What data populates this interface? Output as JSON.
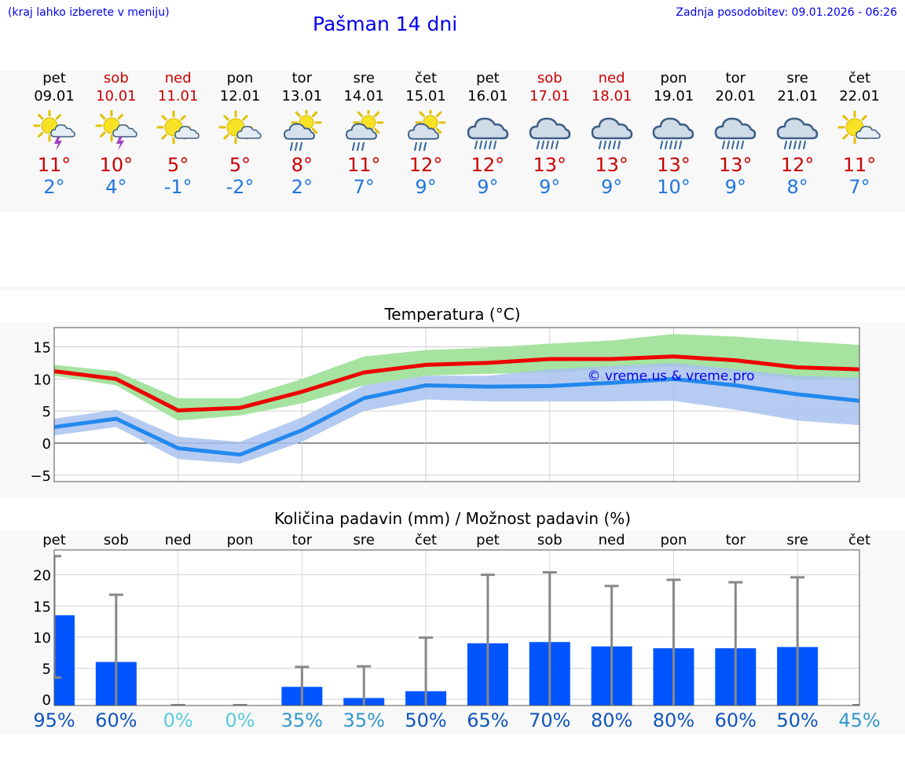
{
  "header": {
    "menu_hint": "(kraj lahko izberete v meniju)",
    "title": "Pašman 14 dni",
    "updated": "Zadnja posodobitev: 09.01.2026 - 06:26"
  },
  "colors": {
    "weekday": "#000000",
    "weekend": "#cc0000",
    "max_temp": "#cc0000",
    "min_temp": "#2277dd",
    "max_line": "#ee0000",
    "max_band": "#a6e3a0",
    "min_line": "#2288ee",
    "min_band": "#a9c2ee",
    "bar": "#0055ff",
    "whisker": "#888888"
  },
  "days": [
    {
      "name": "pet",
      "date": "09.01",
      "weekend": false,
      "icon": "sun-cloud-thunder-icon",
      "max": "11°",
      "min": "2°"
    },
    {
      "name": "sob",
      "date": "10.01",
      "weekend": true,
      "icon": "sun-cloud-thunder-icon",
      "max": "10°",
      "min": "4°"
    },
    {
      "name": "ned",
      "date": "11.01",
      "weekend": true,
      "icon": "sun-cloud-icon",
      "max": "5°",
      "min": "-1°"
    },
    {
      "name": "pon",
      "date": "12.01",
      "weekend": false,
      "icon": "sun-cloud-icon",
      "max": "5°",
      "min": "-2°"
    },
    {
      "name": "tor",
      "date": "13.01",
      "weekend": false,
      "icon": "sun-cloud-rain-icon",
      "max": "8°",
      "min": "2°"
    },
    {
      "name": "sre",
      "date": "14.01",
      "weekend": false,
      "icon": "sun-cloud-rain-icon",
      "max": "11°",
      "min": "7°"
    },
    {
      "name": "čet",
      "date": "15.01",
      "weekend": false,
      "icon": "sun-cloud-rain-icon",
      "max": "12°",
      "min": "9°"
    },
    {
      "name": "pet",
      "date": "16.01",
      "weekend": false,
      "icon": "cloud-rain-icon",
      "max": "12°",
      "min": "9°"
    },
    {
      "name": "sob",
      "date": "17.01",
      "weekend": true,
      "icon": "cloud-rain-icon",
      "max": "13°",
      "min": "9°"
    },
    {
      "name": "ned",
      "date": "18.01",
      "weekend": true,
      "icon": "cloud-rain-icon",
      "max": "13°",
      "min": "9°"
    },
    {
      "name": "pon",
      "date": "19.01",
      "weekend": false,
      "icon": "cloud-rain-icon",
      "max": "13°",
      "min": "10°"
    },
    {
      "name": "tor",
      "date": "20.01",
      "weekend": false,
      "icon": "cloud-rain-icon",
      "max": "13°",
      "min": "9°"
    },
    {
      "name": "sre",
      "date": "21.01",
      "weekend": false,
      "icon": "cloud-rain-icon",
      "max": "12°",
      "min": "8°"
    },
    {
      "name": "čet",
      "date": "22.01",
      "weekend": false,
      "icon": "sun-cloud-icon",
      "max": "11°",
      "min": "7°"
    }
  ],
  "chart_data": [
    {
      "type": "line",
      "title": "Temperatura (°C)",
      "watermark": "© vreme.us & vreme.pro",
      "x": [
        "09.01",
        "10.01",
        "11.01",
        "12.01",
        "13.01",
        "14.01",
        "15.01",
        "16.01",
        "17.01",
        "18.01",
        "19.01",
        "20.01",
        "21.01",
        "22.01"
      ],
      "ylim": [
        -6,
        18
      ],
      "yticks": [
        -5,
        0,
        5,
        10,
        15
      ],
      "yticklabels": [
        "−5",
        "0",
        "5",
        "10",
        "15"
      ],
      "grid": true,
      "series": [
        {
          "name": "max",
          "values": [
            11.2,
            10,
            5.1,
            5.5,
            8,
            11,
            12.2,
            12.5,
            13.1,
            13.1,
            13.5,
            12.9,
            11.8,
            11.5
          ],
          "band_low": [
            10.5,
            9,
            3.5,
            4.3,
            6.2,
            9,
            10.5,
            10.8,
            11,
            11.5,
            12,
            10.8,
            10,
            9.8
          ],
          "band_high": [
            12.2,
            11.2,
            7,
            7,
            10,
            13.5,
            14.5,
            14.9,
            15.5,
            16,
            17,
            16.6,
            15.9,
            15.3
          ]
        },
        {
          "name": "min",
          "values": [
            2.5,
            3.8,
            -0.8,
            -1.8,
            2,
            7,
            9,
            8.8,
            8.9,
            9.4,
            10,
            9,
            7.6,
            6.6
          ],
          "band_low": [
            1.2,
            2.5,
            -2.5,
            -3.2,
            0.2,
            5,
            6.8,
            6.5,
            6.5,
            6.5,
            6.6,
            5.2,
            3.5,
            2.8
          ],
          "band_high": [
            3.8,
            5.2,
            1,
            0.2,
            4,
            9,
            10.5,
            10.5,
            11.5,
            12,
            12.5,
            11.5,
            10.5,
            10.2
          ]
        }
      ]
    },
    {
      "type": "bar",
      "title": "Količina padavin (mm) / Možnost padavin (%)",
      "categories": [
        "pet",
        "sob",
        "ned",
        "pon",
        "tor",
        "sre",
        "čet",
        "pet",
        "sob",
        "ned",
        "pon",
        "tor",
        "sre",
        "čet"
      ],
      "ylim": [
        -1,
        24
      ],
      "yticks": [
        0,
        5,
        10,
        15,
        20
      ],
      "yticklabels": [
        "0",
        "5",
        "10",
        "15",
        "20"
      ],
      "values": [
        13.5,
        6,
        0,
        0,
        2,
        0.2,
        1.3,
        9,
        9.2,
        8.5,
        8.2,
        8.2,
        8.4,
        0
      ],
      "whisker_low": [
        3.5,
        0,
        0,
        0,
        0,
        0,
        0,
        0,
        0,
        0,
        0,
        0,
        0,
        0
      ],
      "whisker_high": [
        23,
        16.8,
        0,
        0,
        5.2,
        5.3,
        9.9,
        20,
        20.4,
        18.2,
        19.2,
        18.8,
        19.6,
        0
      ],
      "probability": [
        "95%",
        "60%",
        "0%",
        "0%",
        "35%",
        "35%",
        "50%",
        "65%",
        "70%",
        "80%",
        "80%",
        "60%",
        "50%",
        "45%"
      ],
      "probability_colors": [
        "#1155bb",
        "#1155bb",
        "#55ccdd",
        "#55ccdd",
        "#3399cc",
        "#3399cc",
        "#1155bb",
        "#1155bb",
        "#1155bb",
        "#1155bb",
        "#1155bb",
        "#1155bb",
        "#1155bb",
        "#3399cc"
      ]
    }
  ]
}
